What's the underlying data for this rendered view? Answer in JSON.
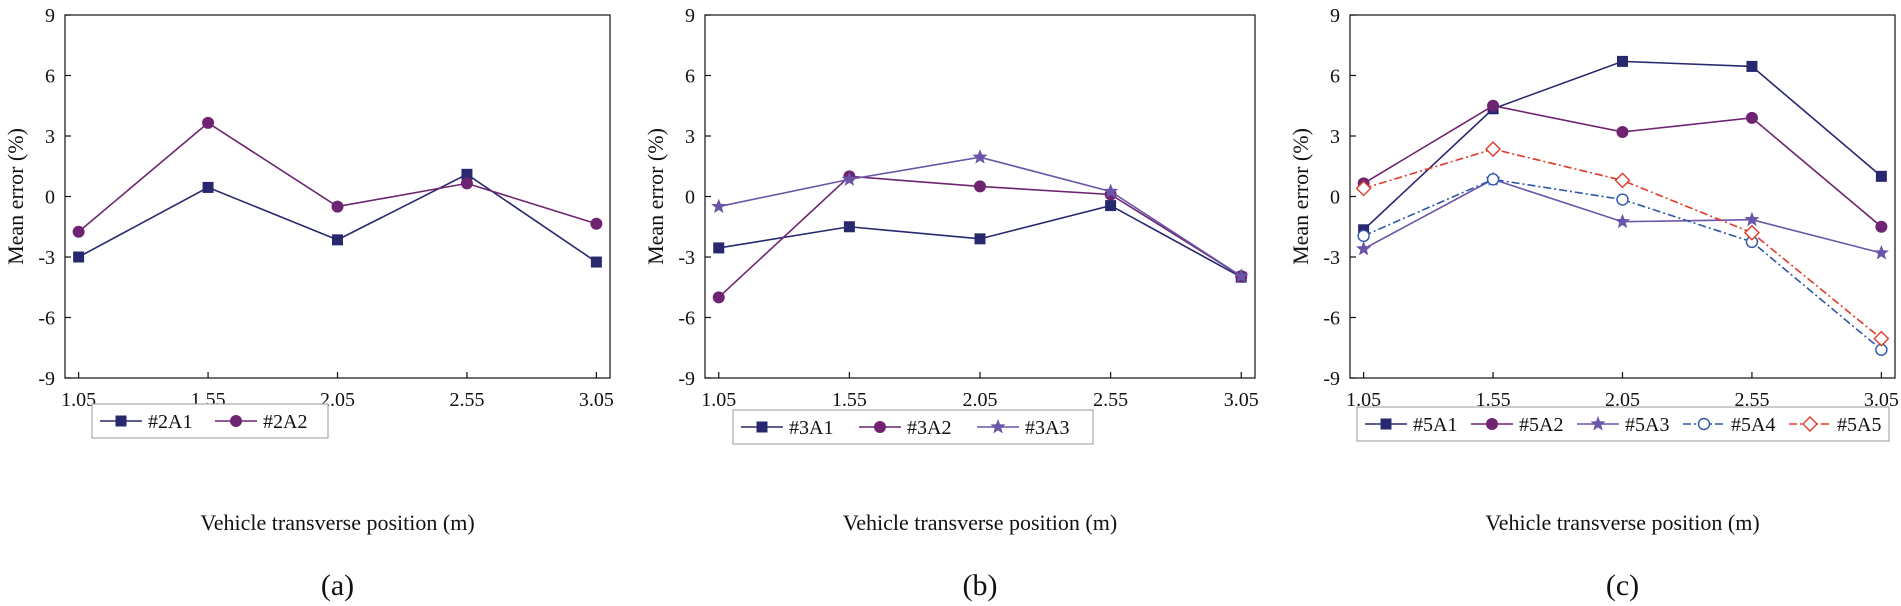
{
  "chart_data": [
    {
      "type": "line",
      "panel_label": "(a)",
      "xlabel": "Vehicle transverse position (m)",
      "ylabel": "Mean error (%)",
      "x": [
        1.05,
        1.55,
        2.05,
        2.55,
        3.05
      ],
      "x_tick_labels": [
        "1.05",
        "1.55",
        "2.05",
        "2.55",
        "3.05"
      ],
      "ylim": [
        -9,
        9
      ],
      "y_ticks": [
        -9,
        -6,
        -3,
        0,
        3,
        6,
        9
      ],
      "y_tick_labels": [
        "-9",
        "-6",
        "-3",
        "0",
        "3",
        "6",
        "9"
      ],
      "legend_position": "bottom-left",
      "series": [
        {
          "name": "#2A1",
          "color": "#27286e",
          "marker": "square",
          "dash": "solid",
          "values": [
            -3.0,
            0.45,
            -2.15,
            1.1,
            -3.25
          ]
        },
        {
          "name": "#2A2",
          "color": "#6e2470",
          "marker": "circle",
          "dash": "solid",
          "values": [
            -1.75,
            3.65,
            -0.5,
            0.65,
            -1.35
          ]
        }
      ]
    },
    {
      "type": "line",
      "panel_label": "(b)",
      "xlabel": "Vehicle transverse position (m)",
      "ylabel": "Mean error (%)",
      "x": [
        1.05,
        1.55,
        2.05,
        2.55,
        3.05
      ],
      "x_tick_labels": [
        "1.05",
        "1.55",
        "2.05",
        "2.55",
        "3.05"
      ],
      "ylim": [
        -9,
        9
      ],
      "y_ticks": [
        -9,
        -6,
        -3,
        0,
        3,
        6,
        9
      ],
      "y_tick_labels": [
        "-9",
        "-6",
        "-3",
        "0",
        "3",
        "6",
        "9"
      ],
      "legend_position": "bottom",
      "series": [
        {
          "name": "#3A1",
          "color": "#27286e",
          "marker": "square",
          "dash": "solid",
          "values": [
            -2.55,
            -1.5,
            -2.1,
            -0.45,
            -4.0
          ]
        },
        {
          "name": "#3A2",
          "color": "#6e2470",
          "marker": "circle",
          "dash": "solid",
          "values": [
            -5.0,
            1.0,
            0.5,
            0.1,
            -3.95
          ]
        },
        {
          "name": "#3A3",
          "color": "#6a55a8",
          "marker": "star",
          "dash": "solid",
          "values": [
            -0.5,
            0.85,
            1.95,
            0.25,
            -3.95
          ]
        }
      ]
    },
    {
      "type": "line",
      "panel_label": "(c)",
      "xlabel": "Vehicle transverse position (m)",
      "ylabel": "Mean error (%)",
      "x": [
        1.05,
        1.55,
        2.05,
        2.55,
        3.05
      ],
      "x_tick_labels": [
        "1.05",
        "1.55",
        "2.05",
        "2.55",
        "3.05"
      ],
      "ylim": [
        -9,
        9
      ],
      "y_ticks": [
        -9,
        -6,
        -3,
        0,
        3,
        6,
        9
      ],
      "y_tick_labels": [
        "-9",
        "-6",
        "-3",
        "0",
        "3",
        "6",
        "9"
      ],
      "legend_position": "bottom",
      "series": [
        {
          "name": "#5A1",
          "color": "#27286e",
          "marker": "square",
          "dash": "solid",
          "values": [
            -1.65,
            4.35,
            6.7,
            6.45,
            1.0
          ]
        },
        {
          "name": "#5A2",
          "color": "#6e2470",
          "marker": "circle",
          "dash": "solid",
          "values": [
            0.65,
            4.5,
            3.2,
            3.9,
            -1.5
          ]
        },
        {
          "name": "#5A3",
          "color": "#6a55a8",
          "marker": "star",
          "dash": "solid",
          "values": [
            -2.6,
            0.85,
            -1.25,
            -1.15,
            -2.8
          ]
        },
        {
          "name": "#5A4",
          "color": "#2f56a8",
          "marker": "open-circle",
          "dash": "dashdot",
          "values": [
            -1.95,
            0.85,
            -0.15,
            -2.25,
            -7.6
          ]
        },
        {
          "name": "#5A5",
          "color": "#e03a2a",
          "marker": "open-diamond",
          "dash": "dashdot",
          "values": [
            0.4,
            2.35,
            0.8,
            -1.8,
            -7.05
          ]
        }
      ]
    }
  ]
}
